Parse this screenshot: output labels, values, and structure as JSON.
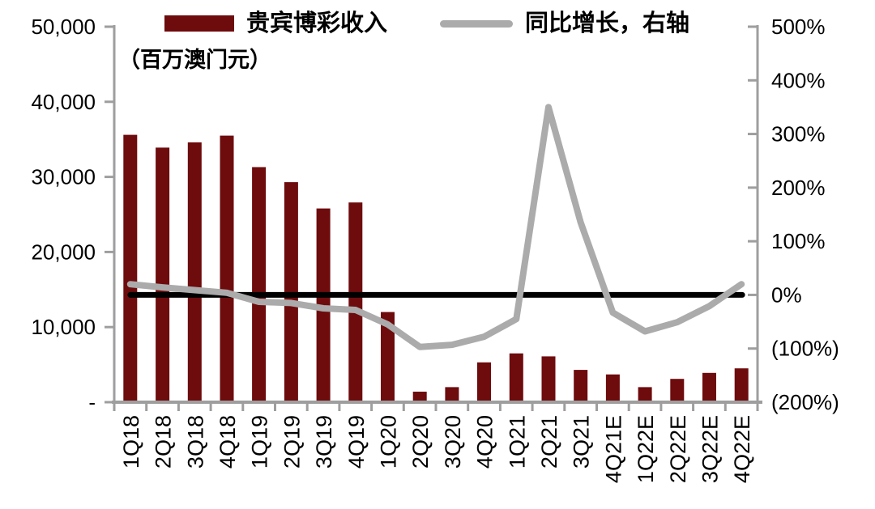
{
  "legend": {
    "bar_label": "贵宾博彩收入",
    "line_label": "同比增长，右轴"
  },
  "left_axis_unit": "（百万澳门元）",
  "colors": {
    "bar": "#6E0B0D",
    "line": "#ABABAB",
    "zero_line": "#000000",
    "axis": "#9E9E9E",
    "text": "#000000"
  },
  "chart_data": {
    "type": "bar",
    "title": "",
    "subtitle_unit": "（百万澳门元）",
    "categories": [
      "1Q18",
      "2Q18",
      "3Q18",
      "4Q18",
      "1Q19",
      "2Q19",
      "3Q19",
      "4Q19",
      "1Q20",
      "2Q20",
      "3Q20",
      "4Q20",
      "1Q21",
      "2Q21",
      "3Q21",
      "4Q21E",
      "1Q22E",
      "2Q22E",
      "3Q22E",
      "4Q22E"
    ],
    "series": [
      {
        "name": "贵宾博彩收入",
        "type": "bar",
        "axis": "left",
        "unit": "百万澳门元",
        "values": [
          35600,
          33900,
          34600,
          35500,
          31300,
          29300,
          25800,
          26600,
          12000,
          1400,
          2000,
          5300,
          6500,
          6100,
          4300,
          3700,
          2000,
          3100,
          3900,
          4500
        ]
      },
      {
        "name": "同比增长，右轴",
        "type": "line",
        "axis": "right",
        "unit": "%",
        "values": [
          20,
          14,
          9,
          4,
          -13,
          -15,
          -25,
          -28,
          -55,
          -97,
          -93,
          -78,
          -45,
          350,
          135,
          -33,
          -68,
          -51,
          -21,
          20
        ]
      }
    ],
    "zero_reference_line": {
      "axis": "right",
      "value": 0
    },
    "left_axis": {
      "min": 0,
      "max": 50000,
      "tick_labels": [
        "50,000",
        "40,000",
        "30,000",
        "20,000",
        "10,000",
        "-"
      ]
    },
    "right_axis": {
      "min": -200,
      "max": 500,
      "tick_labels": [
        "500%",
        "400%",
        "300%",
        "200%",
        "100%",
        "0%",
        "(100%)",
        "(200%)"
      ]
    },
    "grid": false,
    "legend_position": "top"
  }
}
